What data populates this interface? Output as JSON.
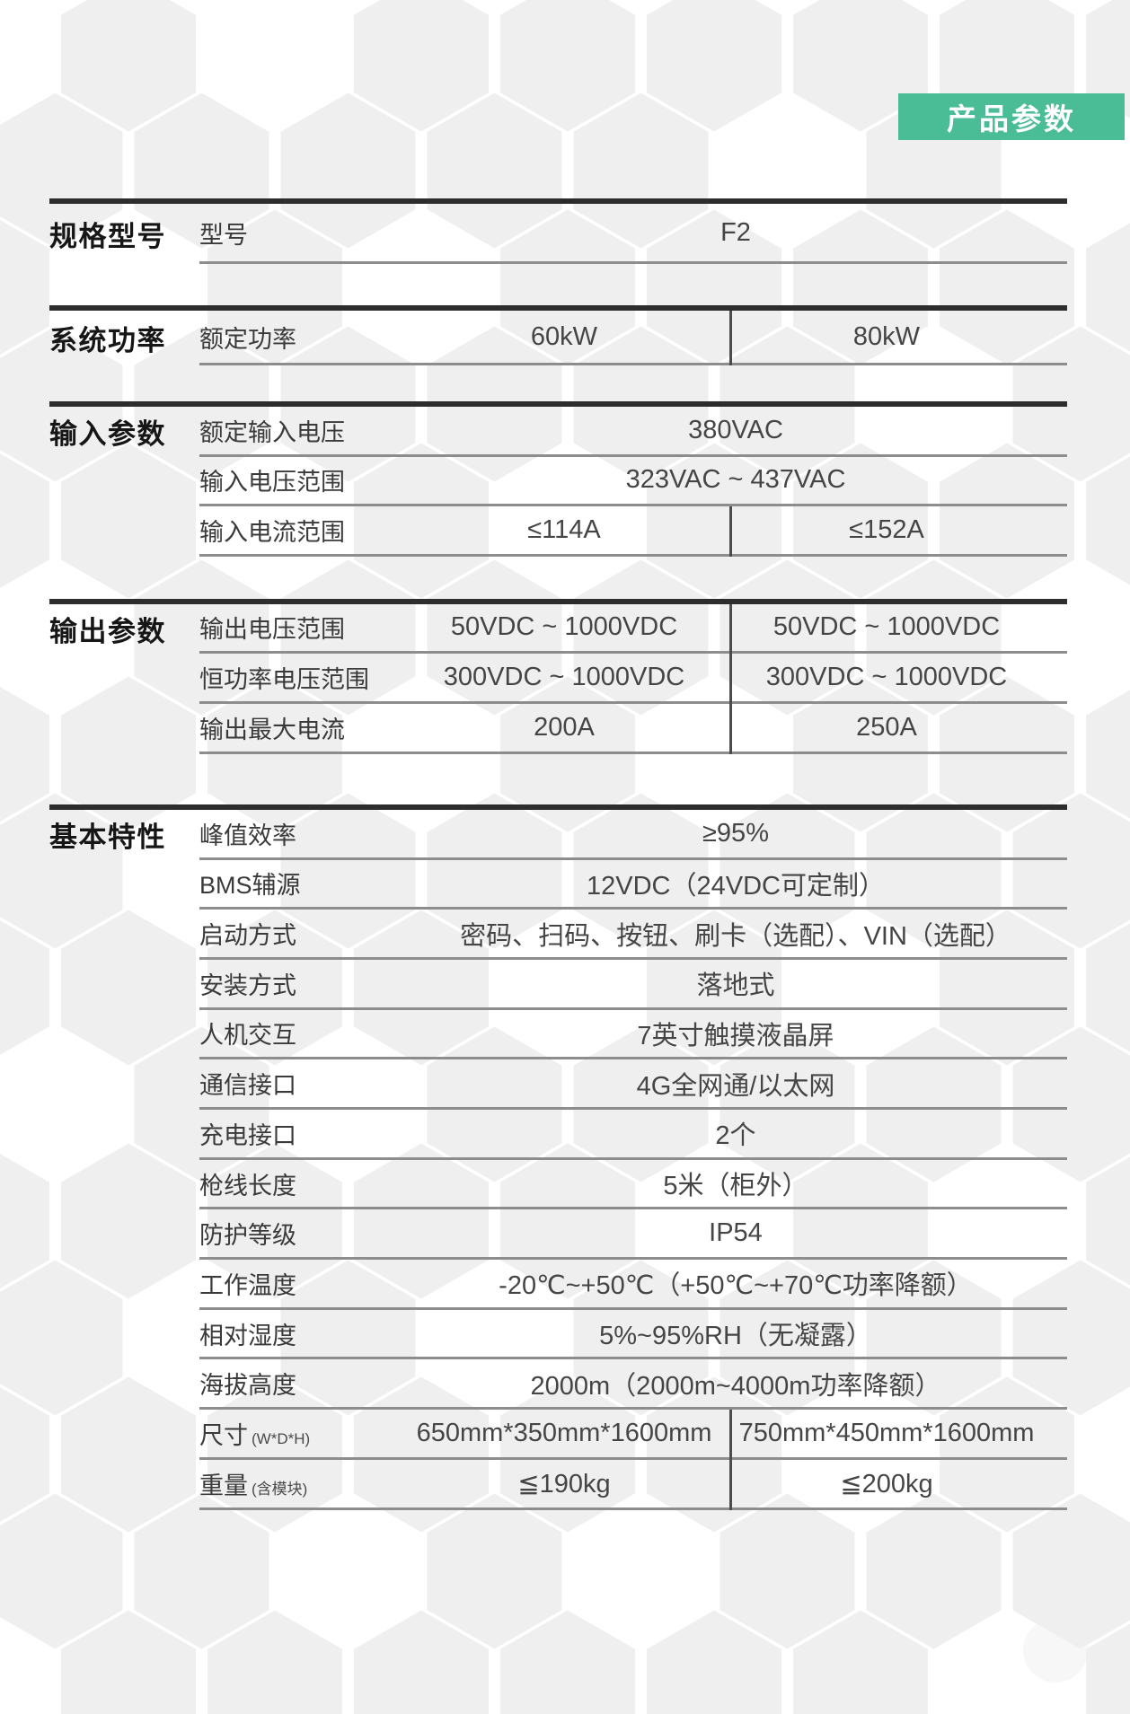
{
  "badge": {
    "label": "产品参数"
  },
  "colors": {
    "accent_green": "#4ABC96",
    "section_line": "#2d2d2d",
    "row_line": "#8d8d8d"
  },
  "sections": [
    {
      "title": "规格型号",
      "rows": [
        {
          "label": "型号",
          "value": "F2"
        }
      ]
    },
    {
      "title": "系统功率",
      "rows": [
        {
          "label": "额定功率",
          "value1": "60kW",
          "value2": "80kW"
        }
      ]
    },
    {
      "title": "输入参数",
      "rows": [
        {
          "label": "额定输入电压",
          "value": "380VAC"
        },
        {
          "label": "输入电压范围",
          "value": "323VAC ~ 437VAC"
        },
        {
          "label": "输入电流范围",
          "value1": "≤114A",
          "value2": "≤152A"
        }
      ]
    },
    {
      "title": "输出参数",
      "rows": [
        {
          "label": "输出电压范围",
          "value1": "50VDC ~ 1000VDC",
          "value2": "50VDC ~ 1000VDC"
        },
        {
          "label": "恒功率电压范围",
          "value1": "300VDC ~ 1000VDC",
          "value2": "300VDC ~ 1000VDC"
        },
        {
          "label": "输出最大电流",
          "value1": "200A",
          "value2": "250A"
        }
      ]
    },
    {
      "title": "基本特性",
      "rows": [
        {
          "label": "峰值效率",
          "value": "≥95%"
        },
        {
          "label": "BMS辅源",
          "value": "12VDC（24VDC可定制）"
        },
        {
          "label": "启动方式",
          "value": "密码、扫码、按钮、刷卡（选配）、VIN（选配）"
        },
        {
          "label": "安装方式",
          "value": "落地式"
        },
        {
          "label": "人机交互",
          "value": "7英寸触摸液晶屏"
        },
        {
          "label": "通信接口",
          "value": "4G全网通/以太网"
        },
        {
          "label": "充电接口",
          "value": "2个"
        },
        {
          "label": "枪线长度",
          "value": "5米（柜外）"
        },
        {
          "label": "防护等级",
          "value": "IP54"
        },
        {
          "label": "工作温度",
          "value": "-20℃~+50℃（+50℃~+70℃功率降额）"
        },
        {
          "label": "相对湿度",
          "value": "5%~95%RH（无凝露）"
        },
        {
          "label": "海拔高度",
          "value": "2000m（2000m~4000m功率降额）"
        },
        {
          "label": "尺寸",
          "label_note": "(W*D*H)",
          "value1": "650mm*350mm*1600mm",
          "value2": "750mm*450mm*1600mm"
        },
        {
          "label": "重量",
          "label_note": "(含模块)",
          "value1": "≦190kg",
          "value2": "≦200kg"
        }
      ]
    }
  ]
}
